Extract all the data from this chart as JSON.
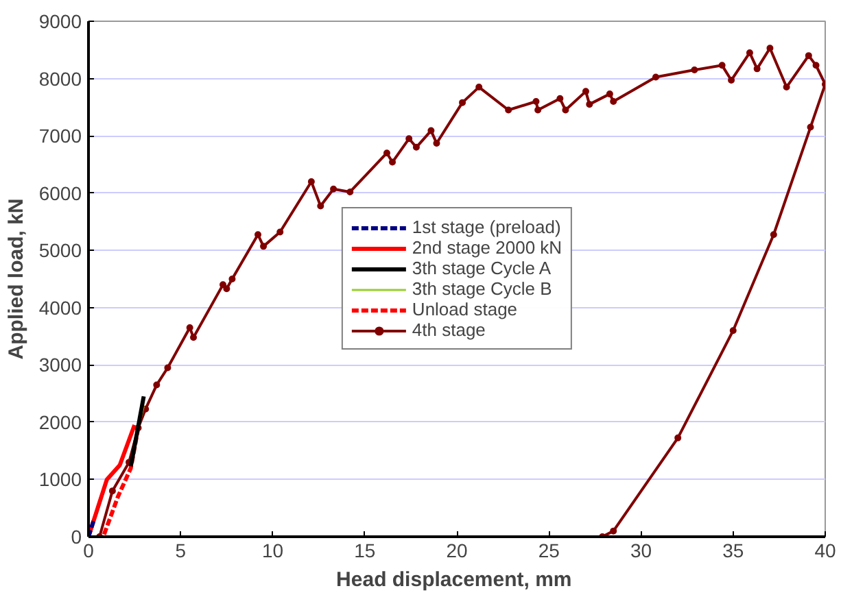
{
  "chart_data": {
    "type": "line",
    "xlabel": "Head displacement,  mm",
    "ylabel": "Applied load, kN",
    "xlim": [
      0,
      40
    ],
    "ylim": [
      0,
      9000
    ],
    "xticks": [
      0,
      5,
      10,
      15,
      20,
      25,
      30,
      35,
      40
    ],
    "yticks": [
      0,
      1000,
      2000,
      3000,
      4000,
      5000,
      6000,
      7000,
      8000,
      9000
    ],
    "grid": "y",
    "legend": "center",
    "series": [
      {
        "name": "1st stage (preload)",
        "color": "#000080",
        "line_style": "dashed",
        "marker": "none",
        "x": [
          0,
          0.3
        ],
        "values": [
          0,
          300
        ]
      },
      {
        "name": "2nd stage 2000 kN",
        "color": "#ff0000",
        "line_style": "solid",
        "marker": "none",
        "x": [
          0,
          0.5,
          1.0,
          1.7,
          2.1,
          2.5
        ],
        "values": [
          0,
          500,
          1000,
          1250,
          1600,
          1950
        ]
      },
      {
        "name": "3th stage Cycle A",
        "color": "#000000",
        "line_style": "solid",
        "marker": "none",
        "x": [
          2.3,
          3.0
        ],
        "values": [
          1230,
          2450
        ]
      },
      {
        "name": "3th stage Cycle B",
        "color": "#9acd32",
        "line_style": "solid",
        "marker": "none",
        "x": [
          2.7,
          3.0
        ],
        "values": [
          1900,
          2280
        ]
      },
      {
        "name": "Unload stage",
        "color": "#ff0000",
        "line_style": "dashed",
        "marker": "none",
        "x": [
          2.7,
          2.3,
          1.6,
          0.8
        ],
        "values": [
          1900,
          1200,
          700,
          0
        ]
      },
      {
        "name": "4th stage",
        "color": "#800000",
        "line_style": "solid",
        "marker": "circle",
        "x": [
          0.6,
          1.3,
          2.2,
          2.7,
          3.1,
          3.7,
          4.3,
          5.5,
          5.7,
          7.3,
          7.5,
          7.8,
          9.2,
          9.5,
          10.4,
          12.1,
          12.6,
          13.3,
          14.2,
          16.2,
          16.5,
          17.4,
          17.8,
          18.6,
          18.9,
          20.3,
          21.2,
          22.8,
          24.3,
          24.4,
          25.6,
          25.9,
          27.0,
          27.2,
          28.3,
          28.5,
          30.8,
          32.9,
          34.4,
          34.9,
          35.9,
          36.3,
          37.0,
          37.9,
          39.1,
          39.5,
          40.0,
          39.2,
          37.2,
          35.0,
          32.0,
          28.5,
          27.9
        ],
        "values": [
          0,
          800,
          1300,
          1900,
          2230,
          2650,
          2950,
          3650,
          3480,
          4400,
          4330,
          4500,
          5275,
          5070,
          5320,
          6200,
          5775,
          6070,
          6020,
          6700,
          6540,
          6950,
          6800,
          7090,
          6870,
          7580,
          7850,
          7450,
          7600,
          7450,
          7650,
          7450,
          7775,
          7550,
          7730,
          7600,
          8025,
          8150,
          8230,
          7970,
          8450,
          8170,
          8530,
          7850,
          8400,
          8230,
          7900,
          7150,
          5275,
          3600,
          1725,
          100,
          0
        ]
      }
    ]
  }
}
